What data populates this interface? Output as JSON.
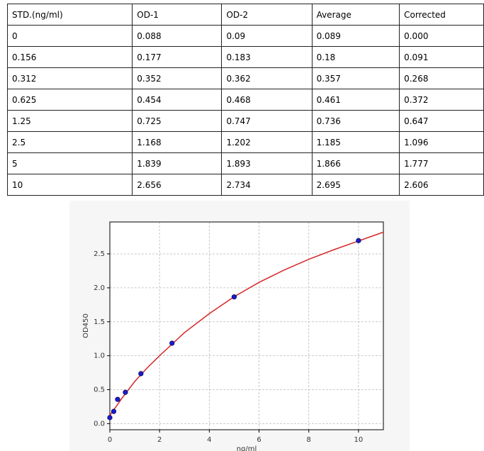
{
  "table": {
    "header": [
      "STD.(ng/ml)",
      "OD-1",
      "OD-2",
      "Average",
      "Corrected"
    ],
    "rows": [
      [
        "0",
        "0.088",
        "0.09",
        "0.089",
        "0.000"
      ],
      [
        "0.156",
        "0.177",
        "0.183",
        "0.18",
        "0.091"
      ],
      [
        "0.312",
        "0.352",
        "0.362",
        "0.357",
        "0.268"
      ],
      [
        "0.625",
        "0.454",
        "0.468",
        "0.461",
        "0.372"
      ],
      [
        "1.25",
        "0.725",
        "0.747",
        "0.736",
        "0.647"
      ],
      [
        "2.5",
        "1.168",
        "1.202",
        "1.185",
        "1.096"
      ],
      [
        "5",
        "1.839",
        "1.893",
        "1.866",
        "1.777"
      ],
      [
        "10",
        "2.656",
        "2.734",
        "2.695",
        "2.606"
      ]
    ]
  },
  "chart_data": {
    "type": "scatter",
    "xlabel": "ng/ml",
    "ylabel": "OD450",
    "xlim": [
      0,
      11
    ],
    "ylim": [
      -0.09,
      2.97
    ],
    "xticks": [
      0,
      2,
      4,
      6,
      8,
      10
    ],
    "yticks": [
      {
        "value": 0,
        "label": "0.0"
      },
      0.5,
      {
        "value": 1,
        "label": "1.0"
      },
      1.5,
      {
        "value": 2,
        "label": "2.0"
      },
      2.5
    ],
    "grid": true,
    "series": [
      {
        "type": "scatter",
        "color": "#1a1acc",
        "x": [
          0,
          0.156,
          0.312,
          0.625,
          1.25,
          2.5,
          5,
          10
        ],
        "values": [
          0.089,
          0.18,
          0.357,
          0.461,
          0.736,
          1.185,
          1.866,
          2.695
        ]
      },
      {
        "type": "line",
        "color": "#d62728",
        "x": [
          0,
          0.5,
          1,
          1.5,
          2,
          3,
          4,
          5,
          6,
          7,
          8,
          9,
          10,
          11
        ],
        "values": [
          0.12,
          0.38,
          0.62,
          0.82,
          1.0,
          1.34,
          1.62,
          1.87,
          2.08,
          2.26,
          2.42,
          2.56,
          2.69,
          2.82
        ]
      }
    ]
  }
}
